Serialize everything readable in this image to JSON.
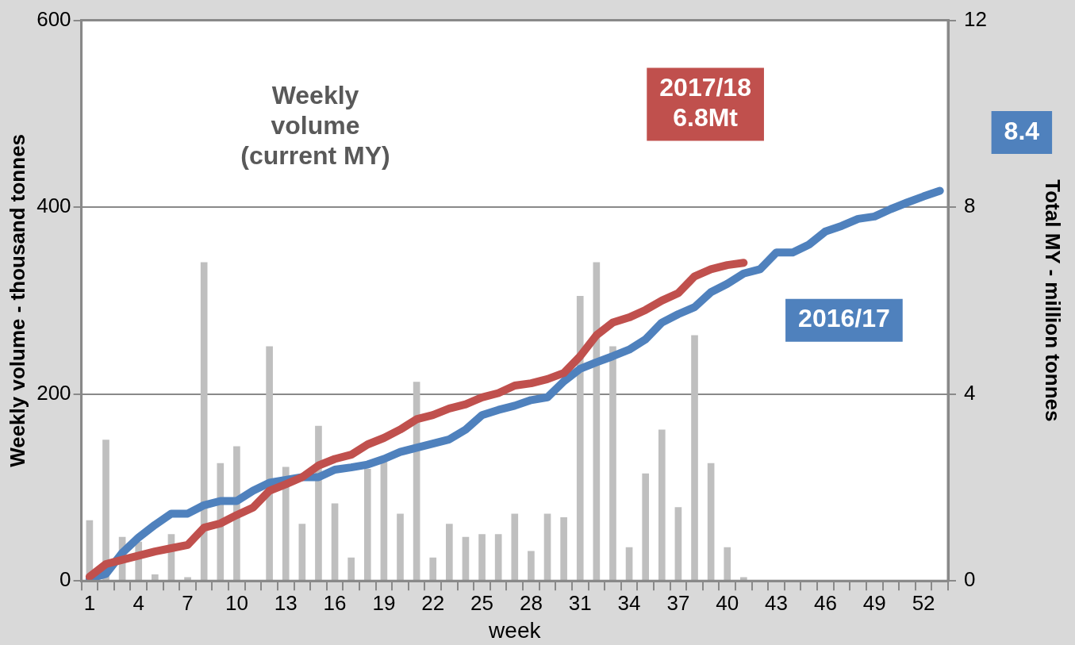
{
  "chart_data": {
    "type": "bar",
    "xlabel": "week",
    "ylabel": "Weekly volume - thousand tonnes",
    "y2label": "Total MY - million tonnes",
    "categories": [
      "1",
      null,
      null,
      "4",
      null,
      null,
      "7",
      null,
      null,
      "10",
      null,
      null,
      "13",
      null,
      null,
      "16",
      null,
      null,
      "19",
      null,
      null,
      "22",
      null,
      null,
      "25",
      null,
      null,
      "28",
      null,
      null,
      "31",
      null,
      null,
      "34",
      null,
      null,
      "37",
      null,
      null,
      "40",
      null,
      null,
      "43",
      null,
      null,
      "46",
      null,
      null,
      "49",
      null,
      null,
      "52",
      null
    ],
    "series": [
      {
        "color": "#bfbfbf",
        "values": [
          65,
          151,
          47,
          42,
          7,
          50,
          4,
          341,
          126,
          144,
          null,
          251,
          122,
          61,
          166,
          83,
          25,
          120,
          129,
          72,
          213,
          25,
          61,
          47,
          50,
          50,
          72,
          32,
          72,
          68,
          305,
          341,
          251,
          36,
          115,
          162,
          79,
          263,
          126,
          36,
          4,
          0,
          0,
          0,
          0,
          0,
          0,
          0,
          0,
          0,
          0,
          0,
          0
        ]
      },
      {
        "name": "2016/17",
        "type": "line",
        "axis": "y2",
        "color": "#4f81bd",
        "values": [
          0.05,
          0.15,
          0.6,
          0.93,
          1.2,
          1.44,
          1.44,
          1.62,
          1.71,
          1.71,
          1.93,
          2.1,
          2.16,
          2.22,
          2.22,
          2.38,
          2.43,
          2.49,
          2.61,
          2.76,
          2.85,
          2.94,
          3.03,
          3.24,
          3.55,
          3.66,
          3.75,
          3.87,
          3.93,
          4.27,
          4.54,
          4.68,
          4.81,
          4.95,
          5.17,
          5.53,
          5.71,
          5.86,
          6.18,
          6.36,
          6.58,
          6.67,
          7.03,
          7.03,
          7.2,
          7.48,
          7.6,
          7.75,
          7.8,
          7.96,
          8.1,
          8.23,
          8.35
        ]
      },
      {
        "name": "2017/18",
        "type": "line",
        "axis": "y2",
        "color": "#c0504d",
        "values": [
          0.09,
          0.36,
          0.45,
          0.54,
          0.63,
          0.7,
          0.77,
          1.14,
          1.23,
          1.41,
          1.57,
          1.93,
          2.07,
          2.22,
          2.47,
          2.61,
          2.7,
          2.92,
          3.06,
          3.24,
          3.46,
          3.55,
          3.69,
          3.78,
          3.93,
          4.02,
          4.18,
          4.23,
          4.32,
          4.45,
          4.81,
          5.26,
          5.53,
          5.64,
          5.8,
          6.0,
          6.16,
          6.52,
          6.67,
          6.76,
          6.81,
          null,
          null,
          null,
          null,
          null,
          null,
          null,
          null,
          null,
          null,
          null,
          null
        ]
      }
    ],
    "annotations": [
      "6.8Mt",
      "8.4",
      "Weekly volume (current MY)"
    ],
    "ylim": [
      0,
      600
    ],
    "yticks": [
      0,
      200,
      400,
      600
    ],
    "y2lim": [
      0,
      12
    ],
    "y2ticks": [
      0,
      4,
      8,
      12
    ],
    "grid": "y",
    "legend": false,
    "marker": "none",
    "line_style": "solid"
  }
}
